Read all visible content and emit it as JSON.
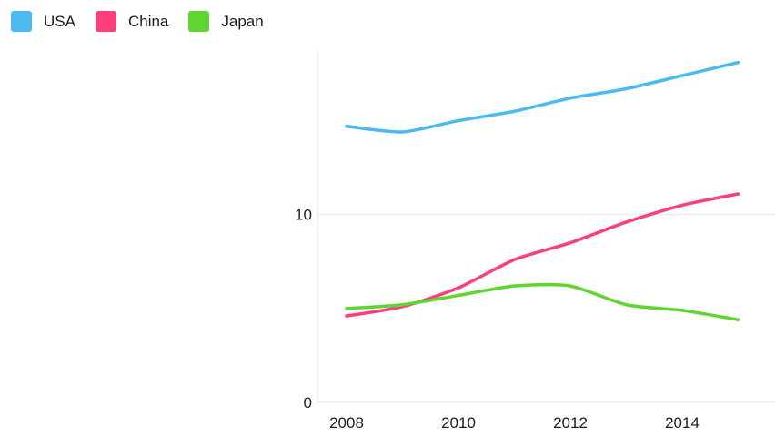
{
  "chart_data": {
    "type": "line",
    "title": "",
    "xlabel": "",
    "ylabel": "",
    "x": [
      2008,
      2009,
      2010,
      2011,
      2012,
      2013,
      2014,
      2015
    ],
    "series": [
      {
        "name": "USA",
        "color": "#4cb9f0",
        "values": [
          14.7,
          14.4,
          15.0,
          15.5,
          16.2,
          16.7,
          17.4,
          18.1
        ]
      },
      {
        "name": "China",
        "color": "#f9407a",
        "values": [
          4.6,
          5.1,
          6.1,
          7.6,
          8.5,
          9.6,
          10.5,
          11.1
        ]
      },
      {
        "name": "Japan",
        "color": "#5fd52f",
        "values": [
          5.0,
          5.2,
          5.7,
          6.2,
          6.2,
          5.2,
          4.9,
          4.4
        ]
      }
    ],
    "xticks": [
      {
        "value": 2008,
        "label": "2008"
      },
      {
        "value": 2010,
        "label": "2010"
      },
      {
        "value": 2012,
        "label": "2012"
      },
      {
        "value": 2014,
        "label": "2014"
      }
    ],
    "yticks": [
      {
        "value": 0,
        "label": "0"
      },
      {
        "value": 10,
        "label": "10"
      }
    ],
    "ylim": [
      0,
      18.76
    ],
    "grid": "horizontal-only",
    "legend_position": "top-left",
    "background_color": "#ffffff",
    "axis_line_color": "#e3e3e3",
    "gridline_color": "#ececec",
    "tick_text_color": "#1d1d1f"
  }
}
